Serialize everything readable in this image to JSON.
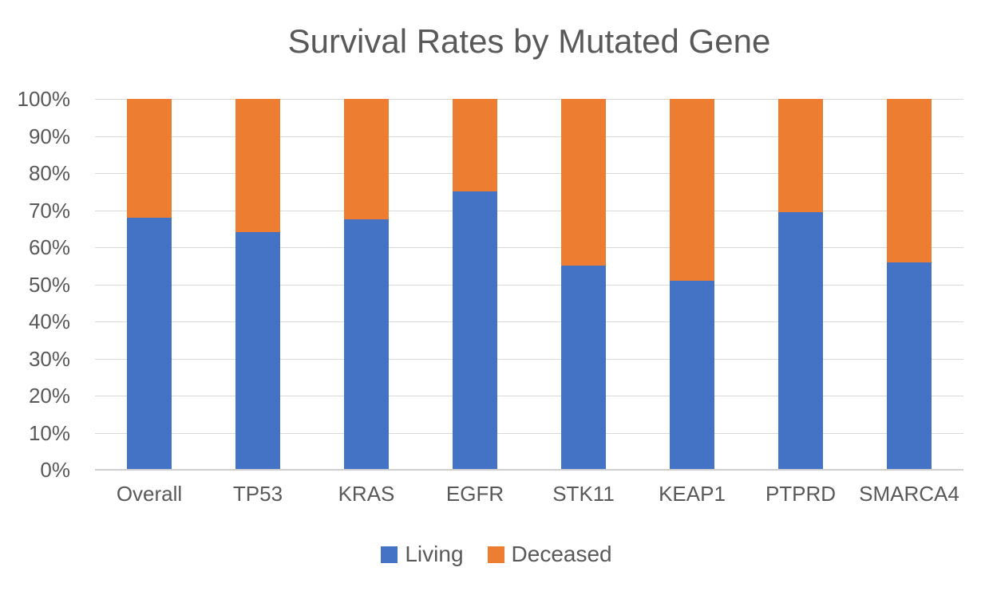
{
  "chart_data": {
    "type": "bar",
    "variant": "stacked-100-percent-column",
    "title": "Survival Rates by Mutated Gene",
    "categories": [
      "Overall",
      "TP53",
      "KRAS",
      "EGFR",
      "STK11",
      "KEAP1",
      "PTPRD",
      "SMARCA4"
    ],
    "series": [
      {
        "name": "Living",
        "color": "#4472C4",
        "values": [
          68,
          64,
          67.5,
          75,
          55,
          51,
          69.5,
          56
        ]
      },
      {
        "name": "Deceased",
        "color": "#ED7D31",
        "values": [
          32,
          36,
          32.5,
          25,
          45,
          49,
          30.5,
          44
        ]
      }
    ],
    "xlabel": "",
    "ylabel": "",
    "ylim": [
      0,
      100
    ],
    "yticks": [
      0,
      10,
      20,
      30,
      40,
      50,
      60,
      70,
      80,
      90,
      100
    ],
    "ytick_suffix": "%",
    "grid": true,
    "gridline_color": "#D9D9D9",
    "axis_line_color": "#CFCFCF",
    "text_color": "#595959",
    "legend_position": "bottom"
  }
}
